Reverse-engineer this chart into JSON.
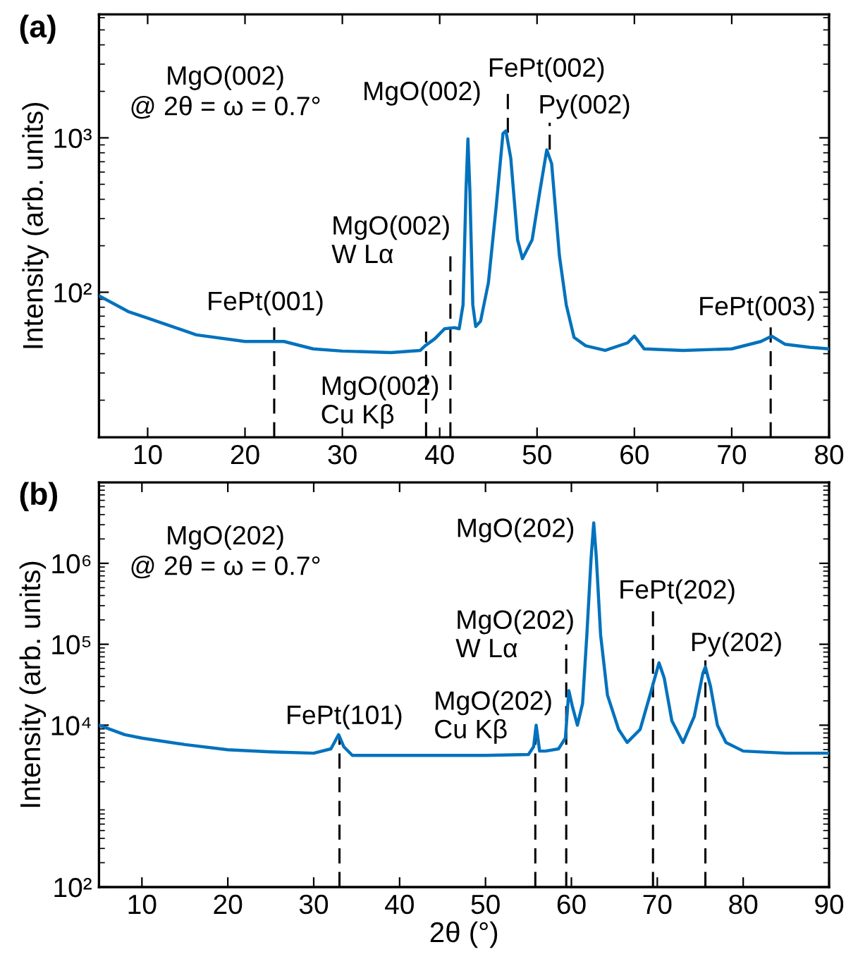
{
  "chart_data": [
    {
      "type": "line",
      "title": "(a)",
      "ylabel": "Intensity (arb. units)",
      "log": "y",
      "xlim": [
        5,
        80
      ],
      "ylim": [
        11.5,
        6300
      ],
      "xticks": [
        10,
        20,
        30,
        40,
        50,
        60,
        70,
        80
      ],
      "yticks": [
        {
          "value": 100,
          "label": "10²"
        },
        {
          "value": 1000,
          "label": "10³"
        }
      ],
      "grid": false,
      "marker": "none",
      "line_style": "solid",
      "series": [
        {
          "color": "#0072bd",
          "x": [
            5,
            8,
            10,
            15,
            20,
            23,
            24,
            27,
            30,
            35,
            38,
            38.5,
            39.5,
            40.5,
            41.5,
            42,
            42.4,
            42.7,
            42.9,
            43.1,
            43.4,
            43.7,
            44.2,
            45,
            45.8,
            46.5,
            46.8,
            47.3,
            48,
            48.5,
            49.5,
            50.3,
            51,
            51.5,
            52.3,
            53,
            53.8,
            55,
            57,
            59.3,
            60,
            61,
            65,
            70,
            73,
            74.1,
            75.5,
            78,
            80
          ],
          "values": [
            95,
            75,
            68,
            53,
            48,
            48,
            48,
            43,
            41.6,
            40.7,
            42,
            45,
            50,
            58,
            59,
            58,
            83,
            455,
            984,
            455,
            83,
            60,
            65,
            115,
            357,
            1066,
            1110,
            740,
            219,
            165,
            219,
            455,
            837,
            680,
            172,
            83,
            51,
            45,
            42,
            47,
            52,
            43,
            42,
            43,
            48,
            52,
            46,
            44,
            43
          ]
        }
      ],
      "ref_lines": [
        {
          "axis": "x",
          "value": 23,
          "label": "FePt(001)",
          "line_style": "dashed",
          "color": "#000000"
        },
        {
          "axis": "x",
          "value": 38.6,
          "label": "MgO(002)\nCu Kβ",
          "line_style": "dashed",
          "color": "#000000"
        },
        {
          "axis": "x",
          "value": 41.1,
          "label": "MgO(002)\nW Lα",
          "line_style": "dashed",
          "color": "#000000"
        },
        {
          "axis": "x",
          "value": 47,
          "label": "FePt(002)",
          "line_style": "dashed",
          "color": "#000000"
        },
        {
          "axis": "x",
          "value": 51.3,
          "label": "Py(002)",
          "line_style": "dashed",
          "color": "#000000"
        },
        {
          "axis": "x",
          "value": 74,
          "label": "FePt(003)",
          "line_style": "dashed",
          "color": "#000000"
        }
      ],
      "annotations": [
        {
          "text": "MgO(002)",
          "x": 43,
          "y": 984
        },
        "MgO(002)\n@ 2θ = ω = 0.7°"
      ]
    },
    {
      "type": "line",
      "title": "(b)",
      "xlabel": "2θ (°)",
      "ylabel": "Intensity (arb. units)",
      "log": "y",
      "xlim": [
        5,
        90
      ],
      "ylim": [
        100,
        10000000
      ],
      "xticks": [
        10,
        20,
        30,
        40,
        50,
        60,
        70,
        80,
        90
      ],
      "yticks": [
        {
          "value": 100,
          "label": "10²"
        },
        {
          "value": 10000,
          "label": "10⁴"
        },
        {
          "value": 100000,
          "label": "10⁵"
        },
        {
          "value": 1000000,
          "label": "10⁶"
        }
      ],
      "grid": false,
      "marker": "none",
      "line_style": "solid",
      "series": [
        {
          "color": "#0072bd",
          "x": [
            5,
            8,
            10,
            15,
            20,
            25,
            30,
            32,
            32.9,
            33.5,
            34.5,
            40,
            50,
            55,
            55.6,
            55.9,
            56.3,
            57,
            58.5,
            59.3,
            59.7,
            60.1,
            60.7,
            61.3,
            61.8,
            62.3,
            62.6,
            62.9,
            63.4,
            64.2,
            65.5,
            66.5,
            68,
            69.3,
            70.2,
            70.8,
            71.7,
            73,
            74.3,
            75.3,
            75.6,
            76.2,
            77,
            78,
            80,
            85,
            90
          ],
          "values": [
            10000,
            7640,
            6920,
            5770,
            4980,
            4680,
            4510,
            5100,
            7640,
            5420,
            4240,
            4240,
            4240,
            4350,
            5420,
            10000,
            4790,
            4790,
            5100,
            6920,
            26700,
            17300,
            10000,
            18500,
            131000,
            1190000,
            3160000,
            1190000,
            131000,
            23500,
            8850,
            6120,
            8850,
            26700,
            59000,
            38500,
            11300,
            6120,
            12800,
            43500,
            52400,
            30000,
            10000,
            6120,
            4790,
            4510,
            4510
          ]
        }
      ],
      "ref_lines": [
        {
          "axis": "x",
          "value": 33,
          "label": "FePt(101)",
          "line_style": "dashed",
          "color": "#000000"
        },
        {
          "axis": "x",
          "value": 55.8,
          "label": "MgO(202)\nCu Kβ",
          "line_style": "dashed",
          "color": "#000000"
        },
        {
          "axis": "x",
          "value": 59.4,
          "label": "MgO(202)\nW Lα",
          "line_style": "dashed",
          "color": "#000000"
        },
        {
          "axis": "x",
          "value": 69.5,
          "label": "FePt(202)",
          "line_style": "dashed",
          "color": "#000000"
        },
        {
          "axis": "x",
          "value": 75.6,
          "label": "Py(202)",
          "line_style": "dashed",
          "color": "#000000"
        }
      ],
      "annotations": [
        {
          "text": "MgO(202)",
          "x": 62.6,
          "y": 3160000
        },
        "MgO(202)\n@ 2θ = ω = 0.7°"
      ]
    }
  ]
}
